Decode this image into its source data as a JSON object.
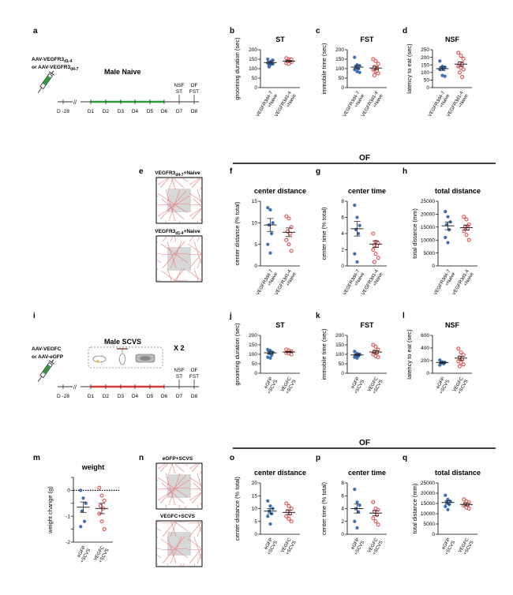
{
  "colors": {
    "blue": "#3b6fb6",
    "red": "#e2413e",
    "green": "#2e9a3a",
    "tl_red": "#d63a34",
    "arena_gray": "#d7d7d7"
  },
  "panel_letters": [
    "a",
    "b",
    "c",
    "d",
    "e",
    "f",
    "g",
    "h",
    "i",
    "j",
    "k",
    "l",
    "m",
    "n",
    "o",
    "p",
    "q"
  ],
  "timeline_top": {
    "virus_line1": "AAV-VEGFR3",
    "virus_line1_sub": "d1-4",
    "virus_line2": "or AAV-VEGFR3",
    "virus_line2_sub": "d4-7",
    "group": "Male Naive",
    "day_labels": [
      "D -28",
      "D1",
      "D2",
      "D3",
      "D4",
      "D5",
      "D6",
      "D7",
      "D8"
    ],
    "test_labels": [
      [
        "NSF",
        "ST"
      ],
      [
        "OF",
        "FST"
      ]
    ]
  },
  "timeline_bottom": {
    "virus_line1": "AAV-VEGFC",
    "virus_line2": "or AAV-eGFP",
    "group": "Male SCVS",
    "repeat": "X 2",
    "day_labels": [
      "D -28",
      "D1",
      "D2",
      "D3",
      "D4",
      "D5",
      "D6",
      "D7",
      "D8"
    ],
    "test_labels": [
      [
        "NSF",
        "ST"
      ],
      [
        "OF",
        "FST"
      ]
    ]
  },
  "of_header": "OF",
  "arena_labels_top": {
    "a_main": "VEGFR3",
    "a_sub": "d4-7",
    "a_tail": "+Naive",
    "b_main": "VEGFR3",
    "b_sub": "d1-4",
    "b_tail": "+Naive"
  },
  "arena_labels_bottom": {
    "a": "eGFP+SCVS",
    "b": "VEGFC+SCVS"
  },
  "chart_data": [
    {
      "id": "b",
      "type": "scatter",
      "title": "ST",
      "ylabel": "grooming duration (sec)",
      "ylim": [
        0,
        200
      ],
      "yticks": [
        0,
        50,
        100,
        150,
        200
      ],
      "categories": [
        "VEGFR3d4-7 +Naive",
        "VEGFR3d1-4 +Naive"
      ],
      "series": [
        {
          "values": [
            150,
            135,
            125,
            115,
            140,
            130,
            120,
            145,
            110
          ],
          "mean": 132,
          "sem": 7
        },
        {
          "values": [
            155,
            150,
            135,
            140,
            145,
            130,
            125,
            148,
            138
          ],
          "mean": 140,
          "sem": 4
        }
      ]
    },
    {
      "id": "c",
      "type": "scatter",
      "title": "FST",
      "ylabel": "immobile time (sec)",
      "ylim": [
        0,
        200
      ],
      "yticks": [
        0,
        50,
        100,
        150,
        200
      ],
      "categories": [
        "VEGFR3d4-7 +Naive",
        "VEGFR3d1-4 +Naive"
      ],
      "series": [
        {
          "values": [
            160,
            120,
            115,
            110,
            100,
            95,
            85,
            80,
            105
          ],
          "mean": 108,
          "sem": 9
        },
        {
          "values": [
            150,
            140,
            125,
            110,
            100,
            95,
            85,
            75,
            65,
            90
          ],
          "mean": 103,
          "sem": 9
        }
      ]
    },
    {
      "id": "d",
      "type": "scatter",
      "title": "NSF",
      "ylabel": "latency to eat (sec)",
      "ylim": [
        0,
        250
      ],
      "yticks": [
        0,
        50,
        100,
        150,
        200,
        250
      ],
      "categories": [
        "VEGFR3d4-7 +Naive",
        "VEGFR3d1-4 +Naive"
      ],
      "series": [
        {
          "values": [
            175,
            140,
            135,
            130,
            125,
            120,
            80,
            75
          ],
          "mean": 125,
          "sem": 12
        },
        {
          "values": [
            230,
            210,
            190,
            160,
            155,
            140,
            130,
            120,
            100,
            70
          ],
          "mean": 155,
          "sem": 15
        }
      ]
    },
    {
      "id": "f",
      "type": "scatter",
      "title": "center distance",
      "ylabel": "center distance (% total)",
      "ylim": [
        0,
        15
      ],
      "yticks": [
        0,
        5,
        10,
        15
      ],
      "categories": [
        "VEGFR3d4-7 +Naive",
        "VEGFR3d1-4 +Naive"
      ],
      "series": [
        {
          "values": [
            13.5,
            13,
            10,
            9.5,
            7.5,
            5,
            3
          ],
          "mean": 9.5,
          "sem": 1.5
        },
        {
          "values": [
            11.5,
            11,
            9,
            8,
            7.5,
            6,
            5,
            3.5
          ],
          "mean": 7.8,
          "sem": 1.0
        }
      ]
    },
    {
      "id": "g",
      "type": "scatter",
      "title": "center time",
      "ylabel": "center time (% total)",
      "ylim": [
        0,
        8
      ],
      "yticks": [
        0,
        2,
        4,
        6,
        8
      ],
      "categories": [
        "VEGFR3d4-7 +Naive",
        "VEGFR3d1-4 +Naive"
      ],
      "series": [
        {
          "values": [
            7.5,
            6,
            5,
            4.5,
            4,
            1.5,
            0.5
          ],
          "mean": 4.6,
          "sem": 0.9
        },
        {
          "values": [
            4,
            3,
            2.8,
            2.6,
            2.5,
            2,
            1.5,
            1,
            0.5
          ],
          "mean": 2.7,
          "sem": 0.4
        }
      ]
    },
    {
      "id": "h",
      "type": "scatter",
      "title": "total distance",
      "ylabel": "total distance (mm)",
      "ylim": [
        0,
        25000
      ],
      "yticks": [
        0,
        5000,
        10000,
        15000,
        20000,
        25000
      ],
      "categories": [
        "VEGFR3d4-7 +Naive",
        "VEGFR3d1-4 +Naive"
      ],
      "series": [
        {
          "values": [
            21000,
            19000,
            17000,
            16000,
            14000,
            11000,
            9000
          ],
          "mean": 15500,
          "sem": 1500
        },
        {
          "values": [
            19000,
            18000,
            16000,
            15000,
            14500,
            13500,
            12000,
            10000
          ],
          "mean": 14800,
          "sem": 1000
        }
      ]
    },
    {
      "id": "j",
      "type": "scatter",
      "title": "ST",
      "ylabel": "grooming duration (sec)",
      "ylim": [
        0,
        200
      ],
      "yticks": [
        0,
        50,
        100,
        150,
        200
      ],
      "categories": [
        "eGFP +SCVS",
        "VEGFC +SCVS"
      ],
      "series": [
        {
          "values": [
            125,
            120,
            110,
            105,
            95,
            85,
            80
          ],
          "mean": 108,
          "sem": 6
        },
        {
          "values": [
            125,
            120,
            115,
            112,
            110,
            108,
            105,
            100
          ],
          "mean": 112,
          "sem": 3
        }
      ]
    },
    {
      "id": "k",
      "type": "scatter",
      "title": "FST",
      "ylabel": "immobile time (sec)",
      "ylim": [
        0,
        200
      ],
      "yticks": [
        0,
        50,
        100,
        150,
        200
      ],
      "categories": [
        "eGFP +SCVS",
        "VEGFC +SCVS"
      ],
      "series": [
        {
          "values": [
            115,
            105,
            100,
            95,
            90,
            85,
            80
          ],
          "mean": 97,
          "sem": 5
        },
        {
          "values": [
            150,
            140,
            125,
            115,
            110,
            100,
            90,
            85
          ],
          "mean": 112,
          "sem": 8
        }
      ]
    },
    {
      "id": "l",
      "type": "scatter",
      "title": "NSF",
      "ylabel": "latency to eat (sec)",
      "ylim": [
        0,
        600
      ],
      "yticks": [
        0,
        200,
        400,
        600
      ],
      "categories": [
        "eGFP +SCVS",
        "VEGFC +SCVS"
      ],
      "series": [
        {
          "values": [
            210,
            180,
            170,
            160,
            150,
            130
          ],
          "mean": 170,
          "sem": 12
        },
        {
          "values": [
            390,
            330,
            290,
            250,
            220,
            190,
            170,
            140,
            110
          ],
          "mean": 240,
          "sem": 30
        }
      ]
    },
    {
      "id": "m",
      "type": "scatter",
      "title": "weight",
      "ylabel": "weight change (g)",
      "ylim": [
        -2,
        0.5
      ],
      "yticks": [
        -2,
        -1.5,
        -1,
        -0.5,
        0,
        0.5
      ],
      "ytick_labels": [
        "-2",
        "",
        "-1",
        "",
        "0",
        ""
      ],
      "zero_line": true,
      "categories": [
        "eGFP +SCVS",
        "VEGFC +SCVS"
      ],
      "series": [
        {
          "values": [
            0,
            -0.3,
            -0.5,
            -0.8,
            -1.2,
            -1.4
          ],
          "mean": -0.65,
          "sem": 0.2
        },
        {
          "values": [
            0.1,
            -0.2,
            -0.4,
            -0.6,
            -0.7,
            -0.9,
            -1.2,
            -1.5
          ],
          "mean": -0.7,
          "sem": 0.2
        }
      ]
    },
    {
      "id": "o",
      "type": "scatter",
      "title": "center distance",
      "ylabel": "center distance (% total)",
      "ylim": [
        0,
        20
      ],
      "yticks": [
        0,
        5,
        10,
        15,
        20
      ],
      "categories": [
        "eGFP +SCVS",
        "VEGFC +SCVS"
      ],
      "series": [
        {
          "values": [
            13,
            11,
            10,
            9,
            8,
            7,
            4
          ],
          "mean": 9,
          "sem": 1
        },
        {
          "values": [
            12,
            11,
            10,
            9,
            8,
            7,
            6,
            5
          ],
          "mean": 8.5,
          "sem": 0.8
        }
      ]
    },
    {
      "id": "p",
      "type": "scatter",
      "title": "center time",
      "ylabel": "center time (% total)",
      "ylim": [
        0,
        8
      ],
      "yticks": [
        0,
        2,
        4,
        6,
        8
      ],
      "categories": [
        "eGFP +SCVS",
        "VEGFC +SCVS"
      ],
      "series": [
        {
          "values": [
            7,
            5,
            4.5,
            4,
            3.5,
            2,
            1
          ],
          "mean": 4,
          "sem": 0.7
        },
        {
          "values": [
            5,
            4,
            3.8,
            3.5,
            3,
            2.5,
            2,
            1.5
          ],
          "mean": 3.3,
          "sem": 0.4
        }
      ]
    },
    {
      "id": "q",
      "type": "scatter",
      "title": "total distance",
      "ylabel": "total distance (mm)",
      "ylim": [
        0,
        25000
      ],
      "yticks": [
        0,
        5000,
        10000,
        15000,
        20000,
        25000
      ],
      "categories": [
        "eGFP +SCVS",
        "VEGFC +SCVS"
      ],
      "series": [
        {
          "values": [
            19000,
            17000,
            16000,
            15500,
            14500,
            13500,
            12000
          ],
          "mean": 15500,
          "sem": 900
        },
        {
          "values": [
            17000,
            16000,
            15500,
            15000,
            14500,
            14000,
            13000,
            12500
          ],
          "mean": 14500,
          "sem": 600
        }
      ]
    }
  ]
}
